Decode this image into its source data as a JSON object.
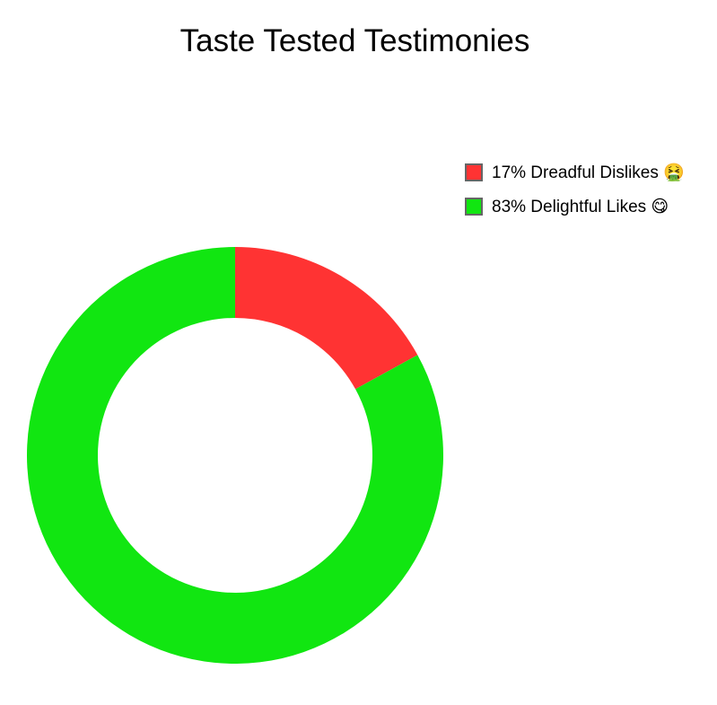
{
  "chart_data": {
    "type": "pie",
    "variant": "donut",
    "title": "Taste Tested Testimonies",
    "slices": [
      {
        "label": "17% Dreadful Dislikes 🤮",
        "value": 17,
        "color": "#ff3333"
      },
      {
        "label": "83% Delightful Likes 😋",
        "value": 83,
        "color": "#11e611"
      }
    ],
    "legend_position": "top-right",
    "start_angle": "top",
    "direction": "clockwise"
  }
}
